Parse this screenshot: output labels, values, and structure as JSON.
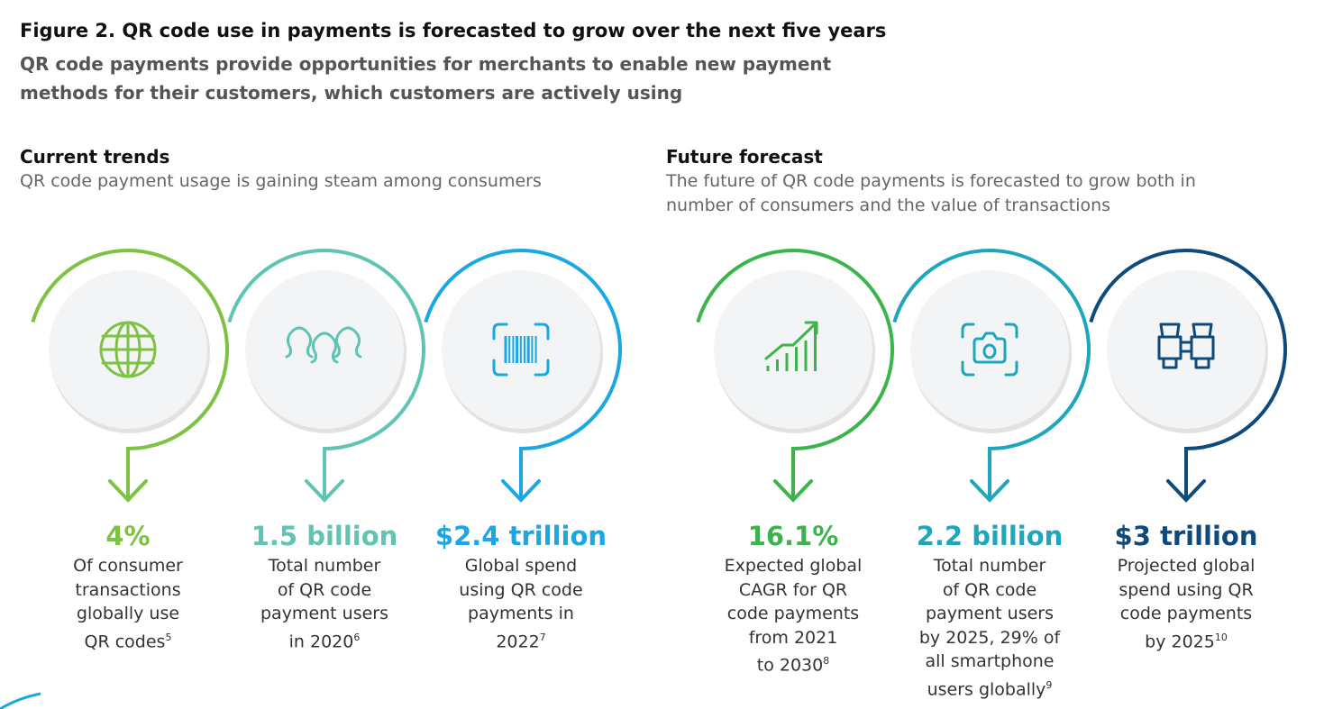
{
  "title": "Figure 2. QR code use in payments is forecasted to grow over the next five years",
  "subtitle": "QR code payments provide opportunities for merchants to enable new payment methods for their customers, which customers are actively using",
  "sections": [
    {
      "heading": "Current trends",
      "text": "QR code payment usage is gaining steam among consumers"
    },
    {
      "heading": "Future forecast",
      "text": "The future of QR code payments is forecasted to grow both in number of consumers and the value of transactions"
    }
  ],
  "stats": [
    {
      "icon": "globe-icon",
      "color": "#7dc242",
      "value": "4%",
      "lines": [
        "Of consumer",
        "transactions",
        "globally use",
        "QR codes"
      ],
      "note": "5"
    },
    {
      "icon": "people-icon",
      "color": "#5fc4b4",
      "value": "1.5 billion",
      "lines": [
        "Total number",
        "of QR code",
        "payment users",
        "in 2020"
      ],
      "note": "6"
    },
    {
      "icon": "barcode-scan-icon",
      "color": "#1ba7e4",
      "value": "$2.4 trillion",
      "lines": [
        "Global spend",
        "using QR code",
        "payments in",
        "2022"
      ],
      "note": "7"
    },
    {
      "icon": "growth-chart-icon",
      "color": "#3bb54a",
      "value": "16.1%",
      "lines": [
        "Expected global",
        "CAGR for QR",
        "code payments",
        "from 2021",
        "to 2030"
      ],
      "note": "8"
    },
    {
      "icon": "camera-scan-icon",
      "color": "#1fa6bf",
      "value": "2.2 billion",
      "lines": [
        "Total number",
        "of QR code",
        "payment users",
        "by 2025, 29% of",
        "all smartphone",
        "users globally"
      ],
      "note": "9"
    },
    {
      "icon": "binoculars-icon",
      "color": "#0f4a7c",
      "value": "$3 trillion",
      "lines": [
        "Projected global",
        "spend using QR",
        "code payments",
        "by 2025"
      ],
      "note": "10"
    }
  ]
}
